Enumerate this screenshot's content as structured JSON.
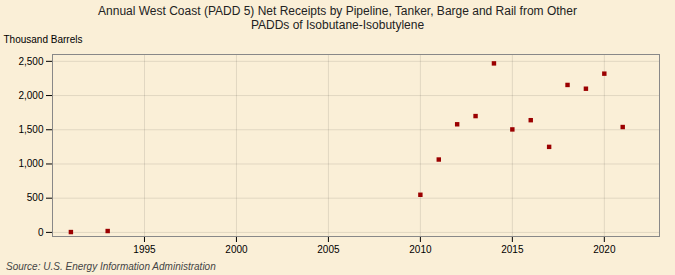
{
  "chart_data": {
    "type": "scatter",
    "title": "Annual West Coast (PADD 5) Net Receipts by Pipeline, Tanker, Barge and Rail from Other\nPADDs of Isobutane-Isobutylene",
    "ylabel": "Thousand Barrels",
    "caption": "Source: U.S. Energy Information Administration",
    "x": [
      1991,
      1993,
      2010,
      2011,
      2012,
      2013,
      2014,
      2015,
      2016,
      2017,
      2018,
      2019,
      2020,
      2021
    ],
    "values": [
      5,
      20,
      550,
      1065,
      1580,
      1700,
      2470,
      1505,
      1640,
      1250,
      2155,
      2100,
      2320,
      1540
    ],
    "color": "#9b0000",
    "marker": "square",
    "xlim": [
      1990,
      2023
    ],
    "ylim": [
      -60,
      2600
    ],
    "xticks": [
      1995,
      2000,
      2005,
      2010,
      2015,
      2020
    ],
    "yticks": [
      0,
      500,
      {
        "value": 1000,
        "label": "1,000"
      },
      {
        "value": 1500,
        "label": "1,500"
      },
      {
        "value": 2000,
        "label": "2,000"
      },
      {
        "value": 2500,
        "label": "2,500"
      }
    ],
    "grid": true
  }
}
